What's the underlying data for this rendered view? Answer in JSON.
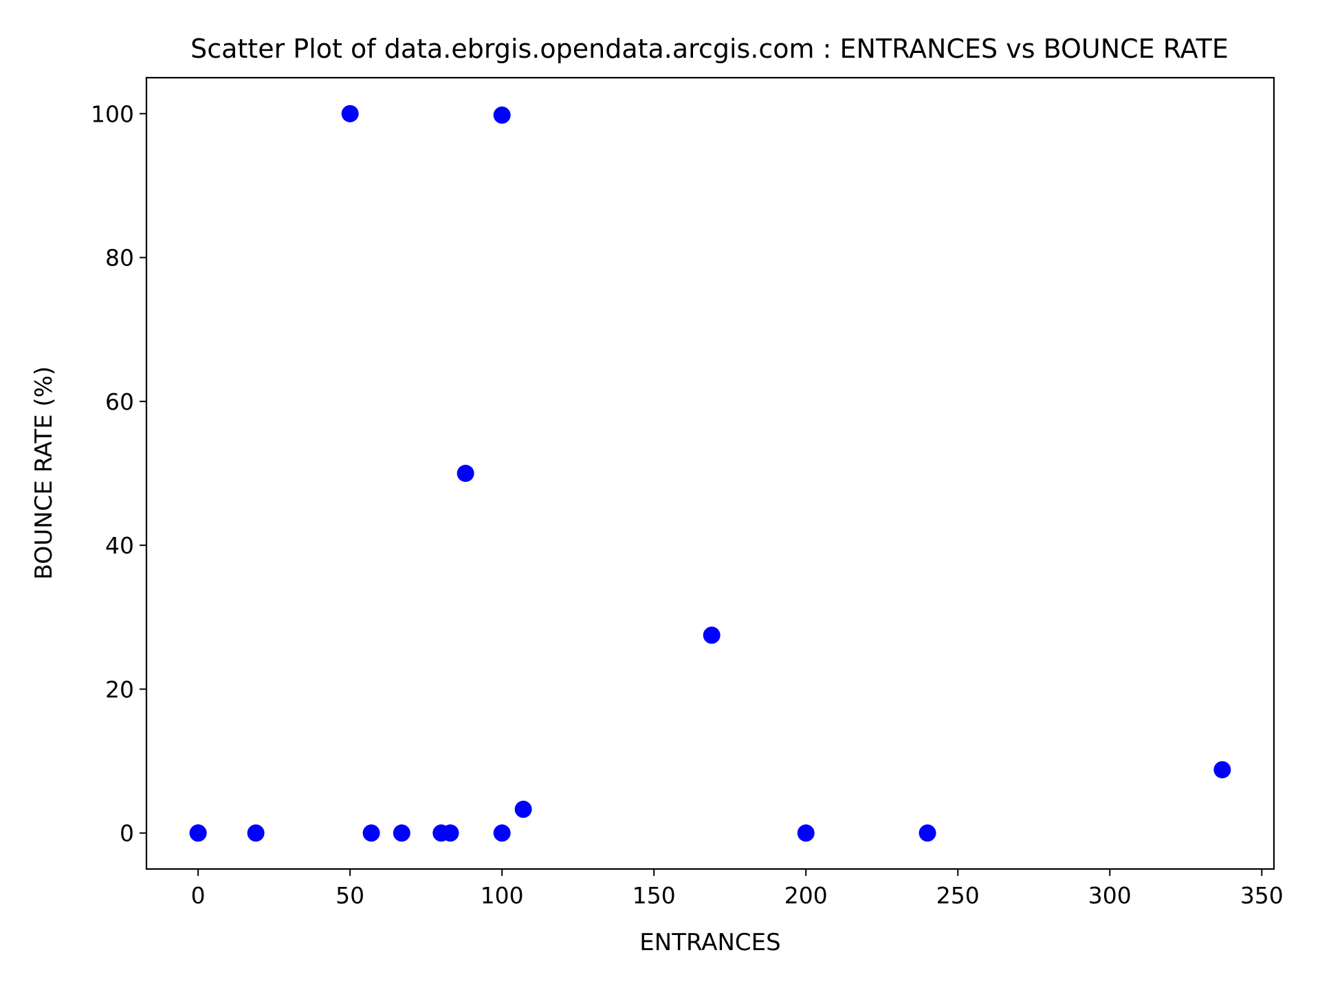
{
  "chart_data": {
    "type": "scatter",
    "title": "Scatter Plot of data.ebrgis.opendata.arcgis.com : ENTRANCES vs BOUNCE RATE",
    "xlabel": "ENTRANCES",
    "ylabel": "BOUNCE RATE (%)",
    "xlim": [
      -17,
      354
    ],
    "ylim": [
      -5,
      105
    ],
    "xticks": [
      0,
      50,
      100,
      150,
      200,
      250,
      300,
      350
    ],
    "yticks": [
      0,
      20,
      40,
      60,
      80,
      100
    ],
    "xtick_labels": [
      "0",
      "50",
      "100",
      "150",
      "200",
      "250",
      "300",
      "350"
    ],
    "ytick_labels": [
      "0",
      "20",
      "40",
      "60",
      "80",
      "100"
    ],
    "grid": false,
    "legend": "none",
    "marker_color": "#0000ff",
    "points": [
      {
        "x": 0,
        "y": 0
      },
      {
        "x": 0,
        "y": 0
      },
      {
        "x": 19,
        "y": 0
      },
      {
        "x": 50,
        "y": 100
      },
      {
        "x": 57,
        "y": 0
      },
      {
        "x": 67,
        "y": 0
      },
      {
        "x": 80,
        "y": 0
      },
      {
        "x": 83,
        "y": 0
      },
      {
        "x": 88,
        "y": 50
      },
      {
        "x": 100,
        "y": 99.8
      },
      {
        "x": 100,
        "y": 0
      },
      {
        "x": 107,
        "y": 3.3
      },
      {
        "x": 169,
        "y": 27.5
      },
      {
        "x": 200,
        "y": 0
      },
      {
        "x": 240,
        "y": 0
      },
      {
        "x": 337,
        "y": 8.8
      }
    ]
  }
}
